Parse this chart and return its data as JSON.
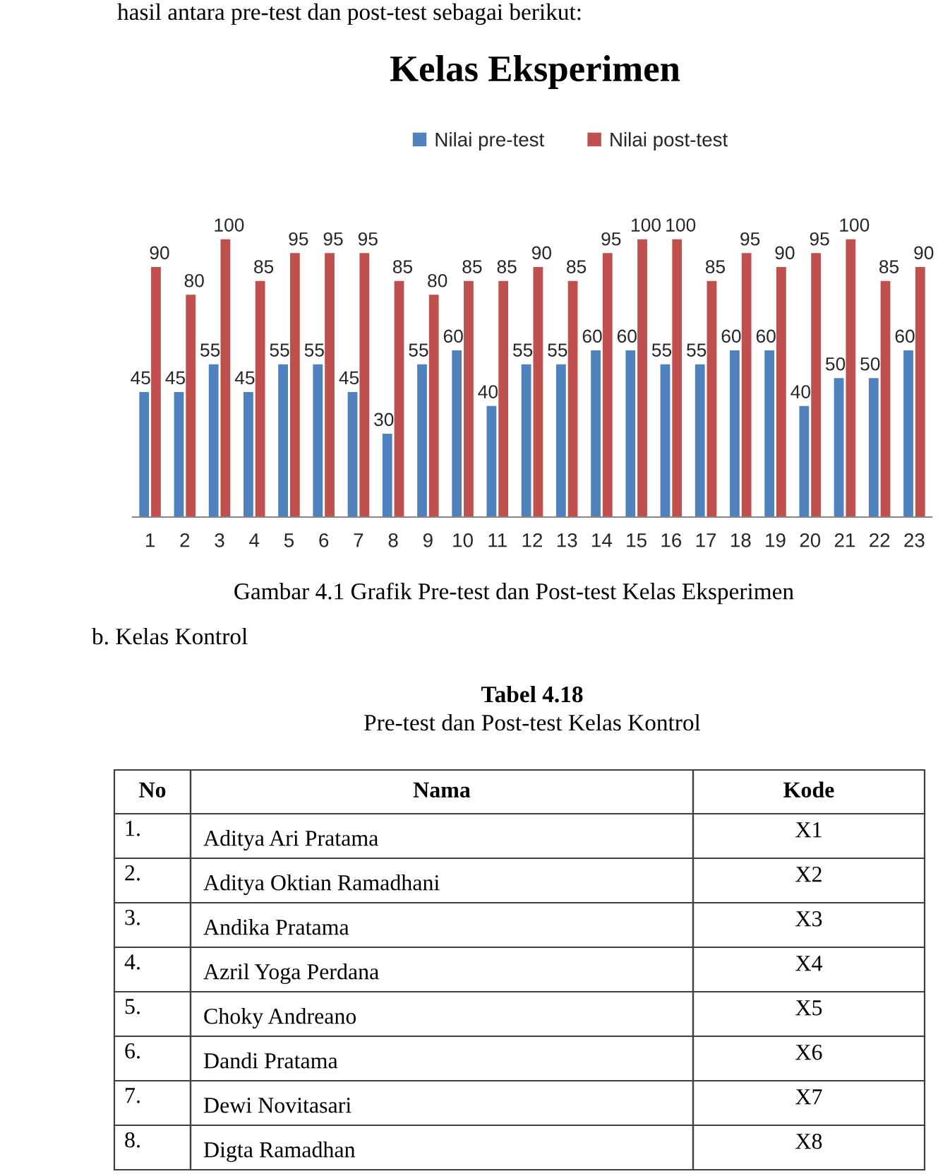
{
  "chart_data": {
    "type": "bar",
    "title": "Kelas Eksperimen",
    "categories": [
      "1",
      "2",
      "3",
      "4",
      "5",
      "6",
      "7",
      "8",
      "9",
      "10",
      "11",
      "12",
      "13",
      "14",
      "15",
      "16",
      "17",
      "18",
      "19",
      "20",
      "21",
      "22",
      "23"
    ],
    "series": [
      {
        "name": "Nilai pre-test",
        "color": "#4f81bd",
        "values": [
          45,
          45,
          55,
          45,
          55,
          55,
          45,
          30,
          55,
          60,
          40,
          55,
          55,
          60,
          60,
          55,
          55,
          60,
          60,
          40,
          50,
          50,
          60
        ]
      },
      {
        "name": "Nilai post-test",
        "color": "#c0504d",
        "values": [
          90,
          80,
          100,
          85,
          95,
          95,
          95,
          85,
          80,
          85,
          85,
          90,
          85,
          95,
          100,
          100,
          85,
          95,
          90,
          95,
          100,
          85,
          90
        ]
      }
    ],
    "tick_labels": "x",
    "data_labels": true,
    "legend": "top",
    "annotations": [
      "hasil antara pre-test dan post-test sebagai berikut:",
      "Gambar 4.1 Grafik Pre-test dan Post-test Kelas Eksperimen",
      "b. Kelas Kontrol",
      "Tabel 4.18",
      "Pre-test dan Post-test Kelas Kontrol",
      "No",
      "Nama",
      "Kode",
      "1.",
      "Aditya Ari Pratama",
      "X1",
      "2.",
      "Aditya Oktian Ramadhani",
      "X2",
      "3.",
      "Andika Pratama",
      "X3",
      "4.",
      "Azril Yoga Perdana",
      "X4",
      "5.",
      "Choky Andreano",
      "X5",
      "6.",
      "Dandi Pratama",
      "X6",
      "7.",
      "Dewi Novitasari",
      "X7",
      "8.",
      "Digta Ramadhan",
      "X8"
    ]
  }
}
